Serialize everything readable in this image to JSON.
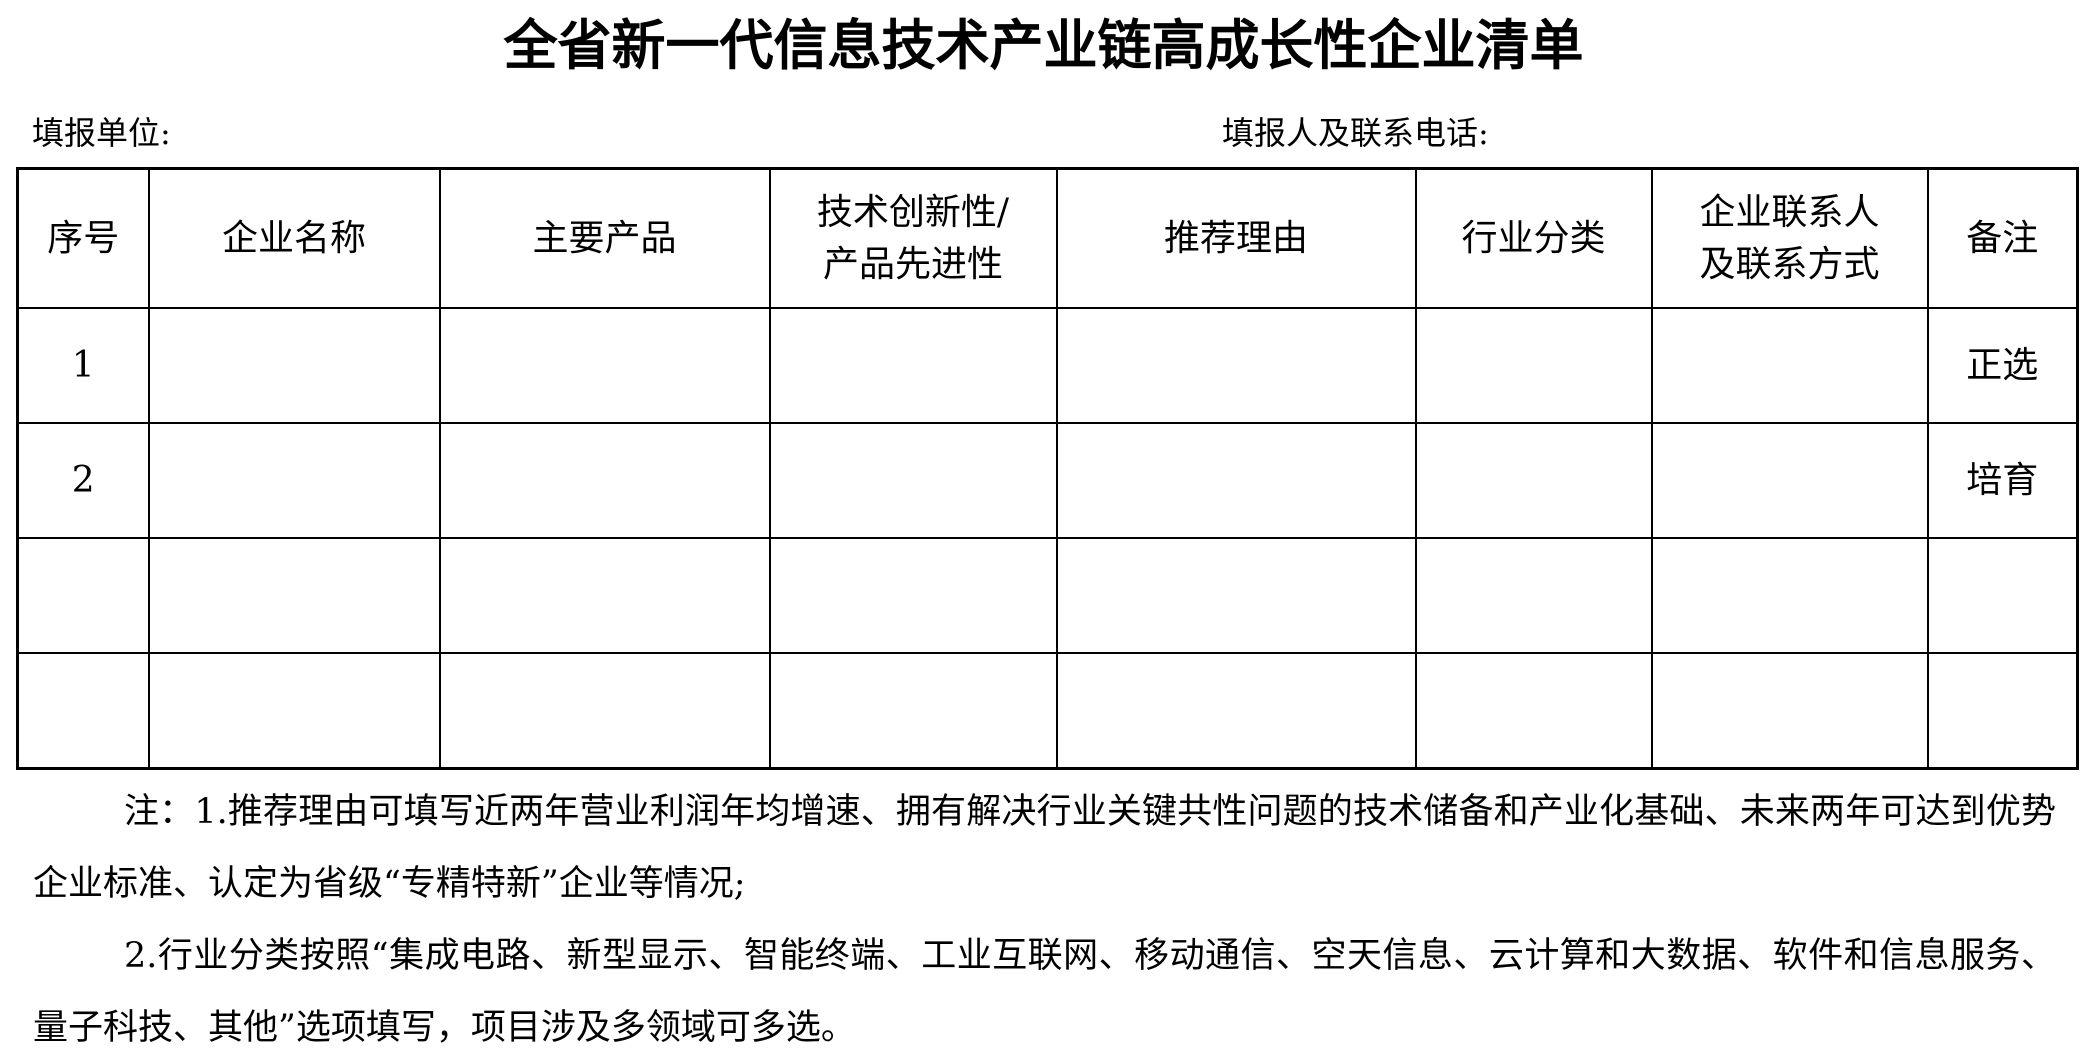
{
  "title": "全省新一代信息技术产业链高成长性企业清单",
  "form_labels": {
    "unit": "填报单位:",
    "contact": "填报人及联系电话:"
  },
  "table": {
    "headers": [
      "序号",
      "企业名称",
      "主要产品",
      "技术创新性/产品先进性",
      "推荐理由",
      "行业分类",
      "企业联系人及联系方式",
      "备注"
    ],
    "header_lines": {
      "col3": [
        "技术创新性/",
        "产品先进性"
      ],
      "col6": [
        "企业联系人",
        "及联系方式"
      ]
    },
    "rows": [
      [
        "1",
        "",
        "",
        "",
        "",
        "",
        "",
        "正选"
      ],
      [
        "2",
        "",
        "",
        "",
        "",
        "",
        "",
        "培育"
      ],
      [
        "",
        "",
        "",
        "",
        "",
        "",
        "",
        ""
      ],
      [
        "",
        "",
        "",
        "",
        "",
        "",
        "",
        ""
      ]
    ]
  },
  "notes": [
    "注：1.推荐理由可填写近两年营业利润年均增速、拥有解决行业关键共性问题的技术储备和产业化基础、未来两年可达到优势企业标准、认定为省级“专精特新”企业等情况;",
    "2.行业分类按照“集成电路、新型显示、智能终端、工业互联网、移动通信、空天信息、云计算和大数据、软件和信息服务、量子科技、其他”选项填写，项目涉及多领域可多选。"
  ]
}
